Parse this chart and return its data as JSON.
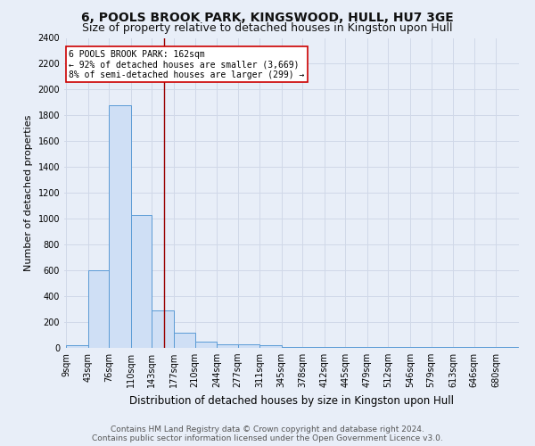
{
  "title": "6, POOLS BROOK PARK, KINGSWOOD, HULL, HU7 3GE",
  "subtitle": "Size of property relative to detached houses in Kingston upon Hull",
  "xlabel": "Distribution of detached houses by size in Kingston upon Hull",
  "ylabel": "Number of detached properties",
  "bin_labels": [
    "9sqm",
    "43sqm",
    "76sqm",
    "110sqm",
    "143sqm",
    "177sqm",
    "210sqm",
    "244sqm",
    "277sqm",
    "311sqm",
    "345sqm",
    "378sqm",
    "412sqm",
    "445sqm",
    "479sqm",
    "512sqm",
    "546sqm",
    "579sqm",
    "613sqm",
    "646sqm",
    "680sqm"
  ],
  "bin_edges": [
    9,
    43,
    76,
    110,
    143,
    177,
    210,
    244,
    277,
    311,
    345,
    378,
    412,
    445,
    479,
    512,
    546,
    579,
    613,
    646,
    680
  ],
  "bar_heights": [
    20,
    600,
    1880,
    1030,
    290,
    115,
    50,
    30,
    25,
    20,
    5,
    5,
    5,
    5,
    5,
    5,
    5,
    5,
    5,
    5,
    5
  ],
  "bar_color": "#cfdff5",
  "bar_edge_color": "#5b9bd5",
  "vline_x": 162,
  "vline_color": "#990000",
  "ylim": [
    0,
    2400
  ],
  "yticks": [
    0,
    200,
    400,
    600,
    800,
    1000,
    1200,
    1400,
    1600,
    1800,
    2000,
    2200,
    2400
  ],
  "annotation_text": "6 POOLS BROOK PARK: 162sqm\n← 92% of detached houses are smaller (3,669)\n8% of semi-detached houses are larger (299) →",
  "annotation_box_color": "#cc0000",
  "annotation_bg": "#ffffff",
  "footer_line1": "Contains HM Land Registry data © Crown copyright and database right 2024.",
  "footer_line2": "Contains public sector information licensed under the Open Government Licence v3.0.",
  "bg_color": "#e8eef8",
  "plot_bg_color": "#e8eef8",
  "grid_color": "#d0d8e8",
  "title_fontsize": 10,
  "subtitle_fontsize": 9,
  "ylabel_fontsize": 8,
  "xlabel_fontsize": 8.5,
  "tick_fontsize": 7,
  "footer_fontsize": 6.5
}
